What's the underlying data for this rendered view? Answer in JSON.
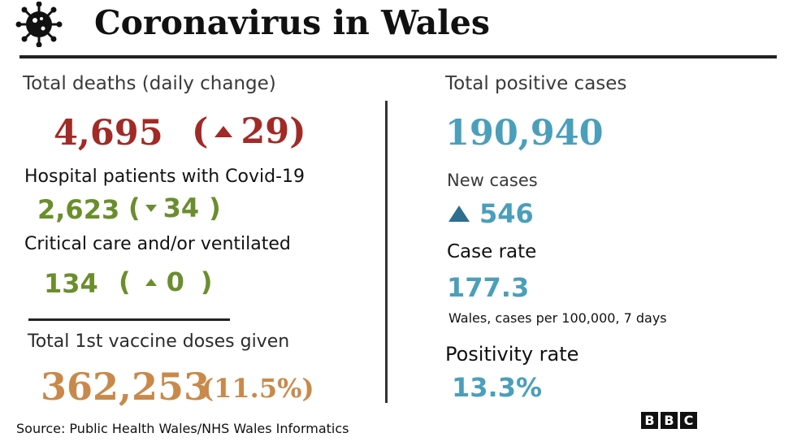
{
  "header": {
    "title": "Coronavirus in Wales",
    "icon": "virus-icon"
  },
  "left": {
    "deaths": {
      "label": "Total deaths (daily change)",
      "value": "4,695",
      "change": "29",
      "open": "(",
      "close": ")",
      "direction": "up"
    },
    "hospital": {
      "label": "Hospital patients with Covid-19",
      "value": "2,623",
      "change": "34",
      "open": "(",
      "close": ")",
      "direction": "down"
    },
    "critical": {
      "label": "Critical care and/or ventilated",
      "value": "134",
      "change": "0",
      "open": "(",
      "close": ")",
      "direction": "up"
    },
    "vaccine": {
      "label": "Total 1st vaccine doses given",
      "value": "362,253",
      "percent": "(11.5%)"
    }
  },
  "right": {
    "cases": {
      "label": "Total positive cases",
      "value": "190,940"
    },
    "new_cases": {
      "label": "New cases",
      "value": "546",
      "direction": "up"
    },
    "case_rate": {
      "label": "Case rate",
      "value": "177.3",
      "subtitle": "Wales, cases per 100,000, 7 days"
    },
    "positivity": {
      "label": "Positivity rate",
      "value": "13.3%"
    }
  },
  "footer": {
    "source": "Source: Public Health Wales/NHS Wales Informatics",
    "logo_letters": [
      "B",
      "B",
      "C"
    ]
  },
  "colors": {
    "deaths": "#a22a26",
    "hospital": "#6a8e2c",
    "vaccine": "#c9894a",
    "cases": "#4a9fbb",
    "arrow_blue": "#2e6e8e"
  }
}
